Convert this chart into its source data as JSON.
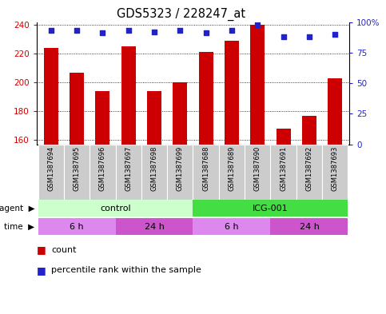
{
  "title": "GDS5323 / 228247_at",
  "samples": [
    "GSM1387694",
    "GSM1387695",
    "GSM1387696",
    "GSM1387697",
    "GSM1387698",
    "GSM1387699",
    "GSM1387688",
    "GSM1387689",
    "GSM1387690",
    "GSM1387691",
    "GSM1387692",
    "GSM1387693"
  ],
  "counts": [
    224,
    207,
    194,
    225,
    194,
    200,
    221,
    229,
    240,
    168,
    177,
    203
  ],
  "percentiles": [
    93,
    93,
    91,
    93,
    92,
    93,
    91,
    93,
    98,
    88,
    88,
    90
  ],
  "ylim_left": [
    157,
    242
  ],
  "ylim_right": [
    0,
    100
  ],
  "yticks_left": [
    160,
    180,
    200,
    220,
    240
  ],
  "yticks_right": [
    0,
    25,
    50,
    75,
    100
  ],
  "agent_groups": [
    {
      "label": "control",
      "start": 0,
      "end": 6,
      "color": "#ccffcc"
    },
    {
      "label": "ICG-001",
      "start": 6,
      "end": 12,
      "color": "#44dd44"
    }
  ],
  "time_groups": [
    {
      "label": "6 h",
      "start": 0,
      "end": 3,
      "color": "#dd88ee"
    },
    {
      "label": "24 h",
      "start": 3,
      "end": 6,
      "color": "#cc55cc"
    },
    {
      "label": "6 h",
      "start": 6,
      "end": 9,
      "color": "#dd88ee"
    },
    {
      "label": "24 h",
      "start": 9,
      "end": 12,
      "color": "#cc55cc"
    }
  ],
  "bar_color": "#cc0000",
  "dot_color": "#2222cc",
  "left_label_color": "#cc0000",
  "right_label_color": "#2222cc",
  "bg_color": "#ffffff",
  "tick_bg": "#cccccc",
  "legend_count_color": "#cc0000",
  "legend_pct_color": "#2222cc"
}
